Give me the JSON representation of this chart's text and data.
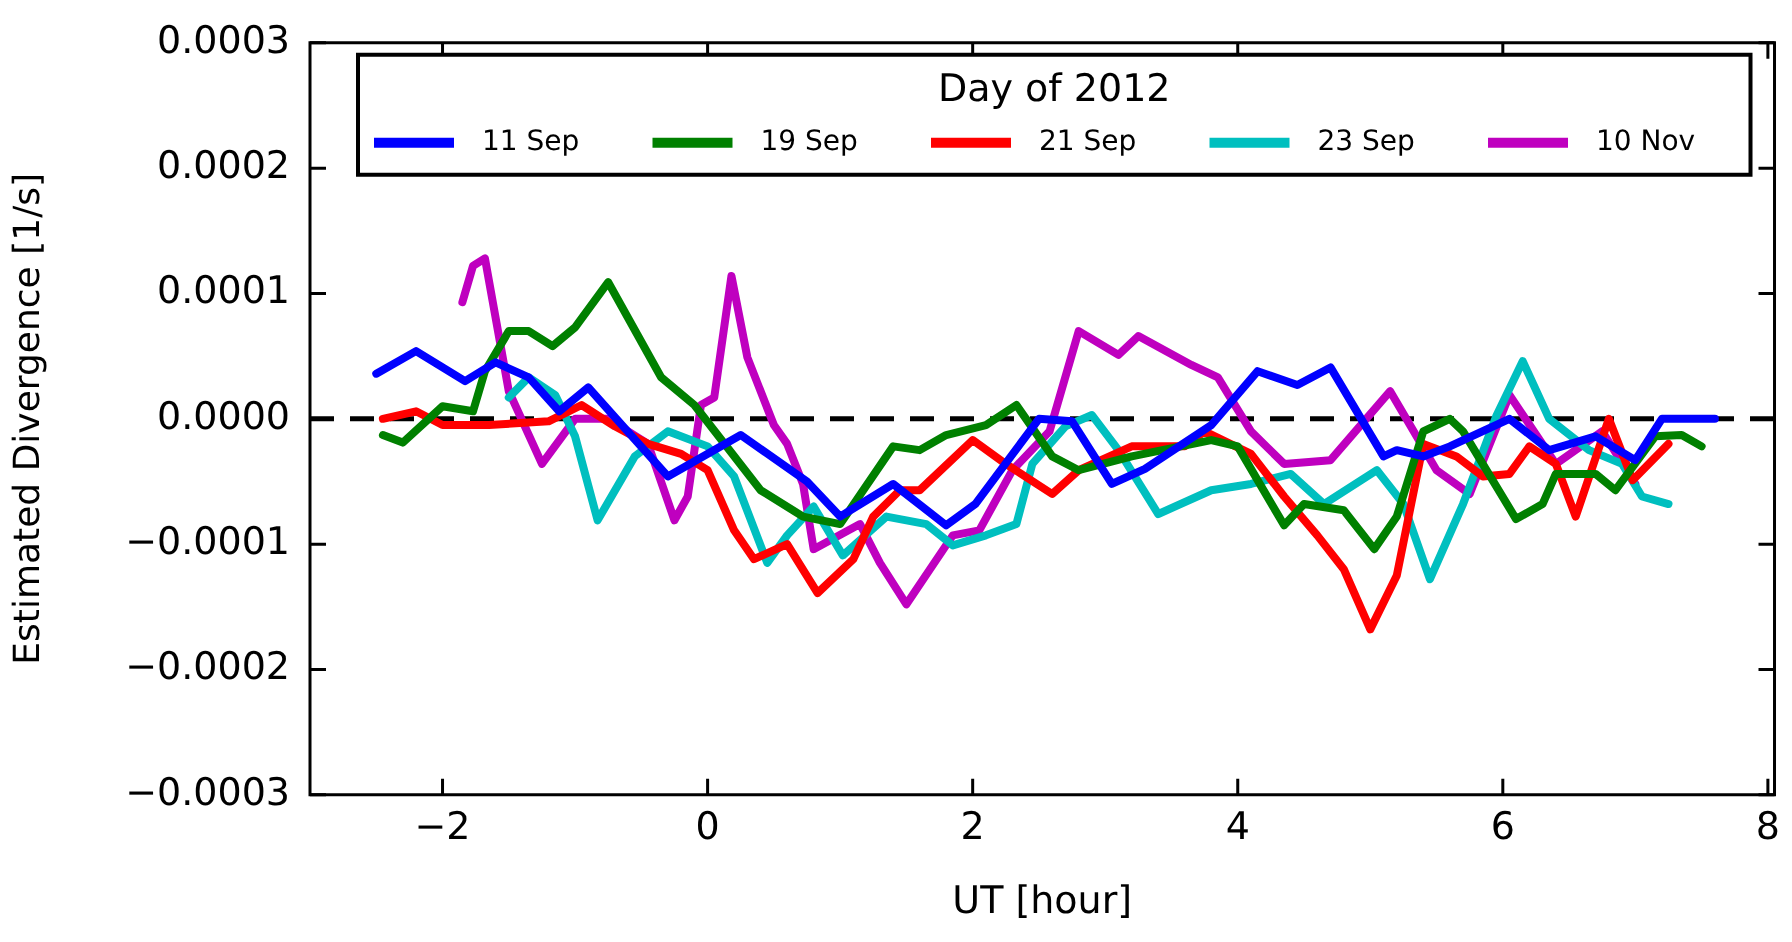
{
  "chart_data": {
    "type": "line",
    "xlabel": "UT [hour]",
    "ylabel": "Estimated Divergence [1/s]",
    "legend_title": "Day of 2012",
    "legend": "top",
    "grid": false,
    "marker": "none",
    "line_style": "solid",
    "xlim": [
      -3,
      8.05
    ],
    "xticks": [
      {
        "value": -2,
        "label": "−2"
      },
      0,
      2,
      4,
      6,
      8
    ],
    "ylim": [
      -0.0003,
      0.0003
    ],
    "yticks": [
      {
        "value": -0.0003,
        "label": "−0.0003"
      },
      {
        "value": -0.0002,
        "label": "−0.0002"
      },
      {
        "value": -0.0001,
        "label": "−0.0001"
      },
      {
        "value": 0,
        "label": "0.0000"
      },
      0.0001,
      0.0002,
      0.0003
    ],
    "ref_lines": [
      {
        "axis": "y",
        "value": 0,
        "color": "#000000",
        "line_style": "dashed"
      }
    ],
    "series": [
      {
        "name": "11 Sep",
        "color": "#0000ff",
        "x": [
          -2.5,
          -2.2,
          -1.83,
          -1.6,
          -1.35,
          -1.12,
          -0.9,
          -0.3,
          0.25,
          0.75,
          1.0,
          1.4,
          1.8,
          2.02,
          2.5,
          2.75,
          3.05,
          3.3,
          3.8,
          4.15,
          4.45,
          4.7,
          5.1,
          5.2,
          5.4,
          5.6,
          6.05,
          6.35,
          6.7,
          7.0,
          7.2,
          7.6
        ],
        "values": [
          3.6e-05,
          5.4e-05,
          3e-05,
          4.5e-05,
          3.3e-05,
          6e-06,
          2.5e-05,
          -4.6e-05,
          -1.3e-05,
          -5e-05,
          -7.8e-05,
          -5.2e-05,
          -8.5e-05,
          -6.8e-05,
          0,
          -2e-06,
          -5.2e-05,
          -4e-05,
          -5e-06,
          3.8e-05,
          2.7e-05,
          4.1e-05,
          -3e-05,
          -2.5e-05,
          -3e-05,
          -2.2e-05,
          0,
          -2.5e-05,
          -1.4e-05,
          -3.3e-05,
          0,
          0
        ]
      },
      {
        "name": "19 Sep",
        "color": "#008000",
        "x": [
          -2.45,
          -2.3,
          -2.0,
          -1.77,
          -1.68,
          -1.5,
          -1.35,
          -1.17,
          -1.0,
          -0.75,
          -0.35,
          -0.1,
          0.4,
          0.72,
          1.0,
          1.4,
          1.6,
          1.8,
          2.1,
          2.33,
          2.6,
          2.8,
          3.2,
          3.8,
          4.0,
          4.35,
          4.5,
          4.8,
          5.03,
          5.2,
          5.4,
          5.6,
          5.7,
          6.1,
          6.3,
          6.4,
          6.7,
          6.85,
          7.15,
          7.35,
          7.5
        ],
        "values": [
          -1.3e-05,
          -1.9e-05,
          1e-05,
          6e-06,
          3.8e-05,
          7e-05,
          7e-05,
          5.8e-05,
          7.3e-05,
          0.000109,
          3.3e-05,
          1.1e-05,
          -5.7e-05,
          -7.8e-05,
          -8.4e-05,
          -2.2e-05,
          -2.5e-05,
          -1.3e-05,
          -5e-06,
          1.1e-05,
          -3e-05,
          -4.1e-05,
          -3e-05,
          -1.7e-05,
          -2.2e-05,
          -8.5e-05,
          -6.8e-05,
          -7.3e-05,
          -0.000104,
          -7.8e-05,
          -1e-05,
          0,
          -1e-05,
          -8e-05,
          -6.8e-05,
          -4.4e-05,
          -4.4e-05,
          -5.7e-05,
          -1.4e-05,
          -1.3e-05,
          -2.2e-05
        ]
      },
      {
        "name": "21 Sep",
        "color": "#ff0000",
        "x": [
          -2.45,
          -2.2,
          -2.0,
          -1.65,
          -1.2,
          -0.95,
          -0.7,
          -0.45,
          -0.2,
          0,
          0.2,
          0.35,
          0.6,
          0.83,
          1.1,
          1.25,
          1.45,
          1.6,
          2.0,
          2.25,
          2.6,
          2.8,
          3.2,
          3.6,
          3.75,
          4.1,
          4.35,
          4.6,
          4.8,
          5.0,
          5.2,
          5.4,
          5.65,
          5.85,
          6.05,
          6.2,
          6.4,
          6.55,
          6.8,
          6.98,
          7.25
        ],
        "values": [
          0,
          6e-06,
          -5e-06,
          -5e-06,
          -2e-06,
          1.1e-05,
          -6e-06,
          -2e-05,
          -2.8e-05,
          -4.1e-05,
          -8.9e-05,
          -0.000112,
          -0.0001,
          -0.000139,
          -0.000112,
          -7.8e-05,
          -5.7e-05,
          -5.7e-05,
          -1.7e-05,
          -3.6e-05,
          -6e-05,
          -4.1e-05,
          -2.2e-05,
          -2.2e-05,
          -1e-05,
          -2.8e-05,
          -6.2e-05,
          -9.3e-05,
          -0.00012,
          -0.000168,
          -0.000125,
          -2e-05,
          -3e-05,
          -4.6e-05,
          -4.4e-05,
          -2.2e-05,
          -3.6e-05,
          -7.8e-05,
          0,
          -4.9e-05,
          -2e-05
        ]
      },
      {
        "name": "23 Sep",
        "color": "#00bfbf",
        "x": [
          -1.5,
          -1.35,
          -1.15,
          -1.0,
          -0.83,
          -0.55,
          -0.3,
          0,
          0.2,
          0.45,
          0.6,
          0.8,
          1.02,
          1.35,
          1.65,
          1.85,
          2.1,
          2.33,
          2.45,
          2.7,
          2.9,
          3.1,
          3.4,
          3.8,
          4.1,
          4.4,
          4.65,
          5.05,
          5.25,
          5.45,
          5.7,
          5.95,
          6.15,
          6.35,
          6.65,
          6.9,
          7.05,
          7.25
        ],
        "values": [
          1.7e-05,
          3.3e-05,
          1.9e-05,
          -1.4e-05,
          -8.1e-05,
          -3e-05,
          -1e-05,
          -2.2e-05,
          -4.6e-05,
          -0.000115,
          -9.3e-05,
          -7e-05,
          -0.000109,
          -7.8e-05,
          -8.4e-05,
          -0.000101,
          -9.3e-05,
          -8.4e-05,
          -3.6e-05,
          -6e-06,
          3e-06,
          -2.5e-05,
          -7.6e-05,
          -5.7e-05,
          -5.2e-05,
          -4.4e-05,
          -6.8e-05,
          -4.1e-05,
          -6.8e-05,
          -0.000128,
          -6.8e-05,
          2e-06,
          4.6e-05,
          0,
          -2.5e-05,
          -3.6e-05,
          -6.2e-05,
          -6.8e-05
        ]
      },
      {
        "name": "10 Nov",
        "color": "#bf00bf",
        "x": [
          -1.85,
          -1.77,
          -1.68,
          -1.5,
          -1.25,
          -1.0,
          -0.75,
          -0.45,
          -0.25,
          -0.15,
          -0.05,
          0.05,
          0.18,
          0.3,
          0.5,
          0.6,
          0.72,
          0.8,
          1.15,
          1.3,
          1.5,
          1.85,
          2.05,
          2.3,
          2.58,
          2.8,
          3.1,
          3.25,
          3.65,
          3.85,
          4.1,
          4.35,
          4.7,
          5.15,
          5.5,
          5.75,
          6.05,
          6.4,
          6.75,
          7.0
        ],
        "values": [
          9.3e-05,
          0.000122,
          0.000128,
          2.2e-05,
          -3.6e-05,
          0,
          0,
          -2e-05,
          -8.1e-05,
          -6.2e-05,
          1.1e-05,
          1.7e-05,
          0.000114,
          4.9e-05,
          -5e-06,
          -2e-05,
          -5.2e-05,
          -0.000104,
          -8.4e-05,
          -0.000115,
          -0.000148,
          -9.3e-05,
          -8.9e-05,
          -4.1e-05,
          -1e-05,
          7e-05,
          5.1e-05,
          6.6e-05,
          4.3e-05,
          3.3e-05,
          -1e-05,
          -3.6e-05,
          -3.3e-05,
          2.2e-05,
          -4.1e-05,
          -6e-05,
          1.9e-05,
          -3.6e-05,
          -1e-05,
          -5.2e-05
        ]
      }
    ]
  }
}
